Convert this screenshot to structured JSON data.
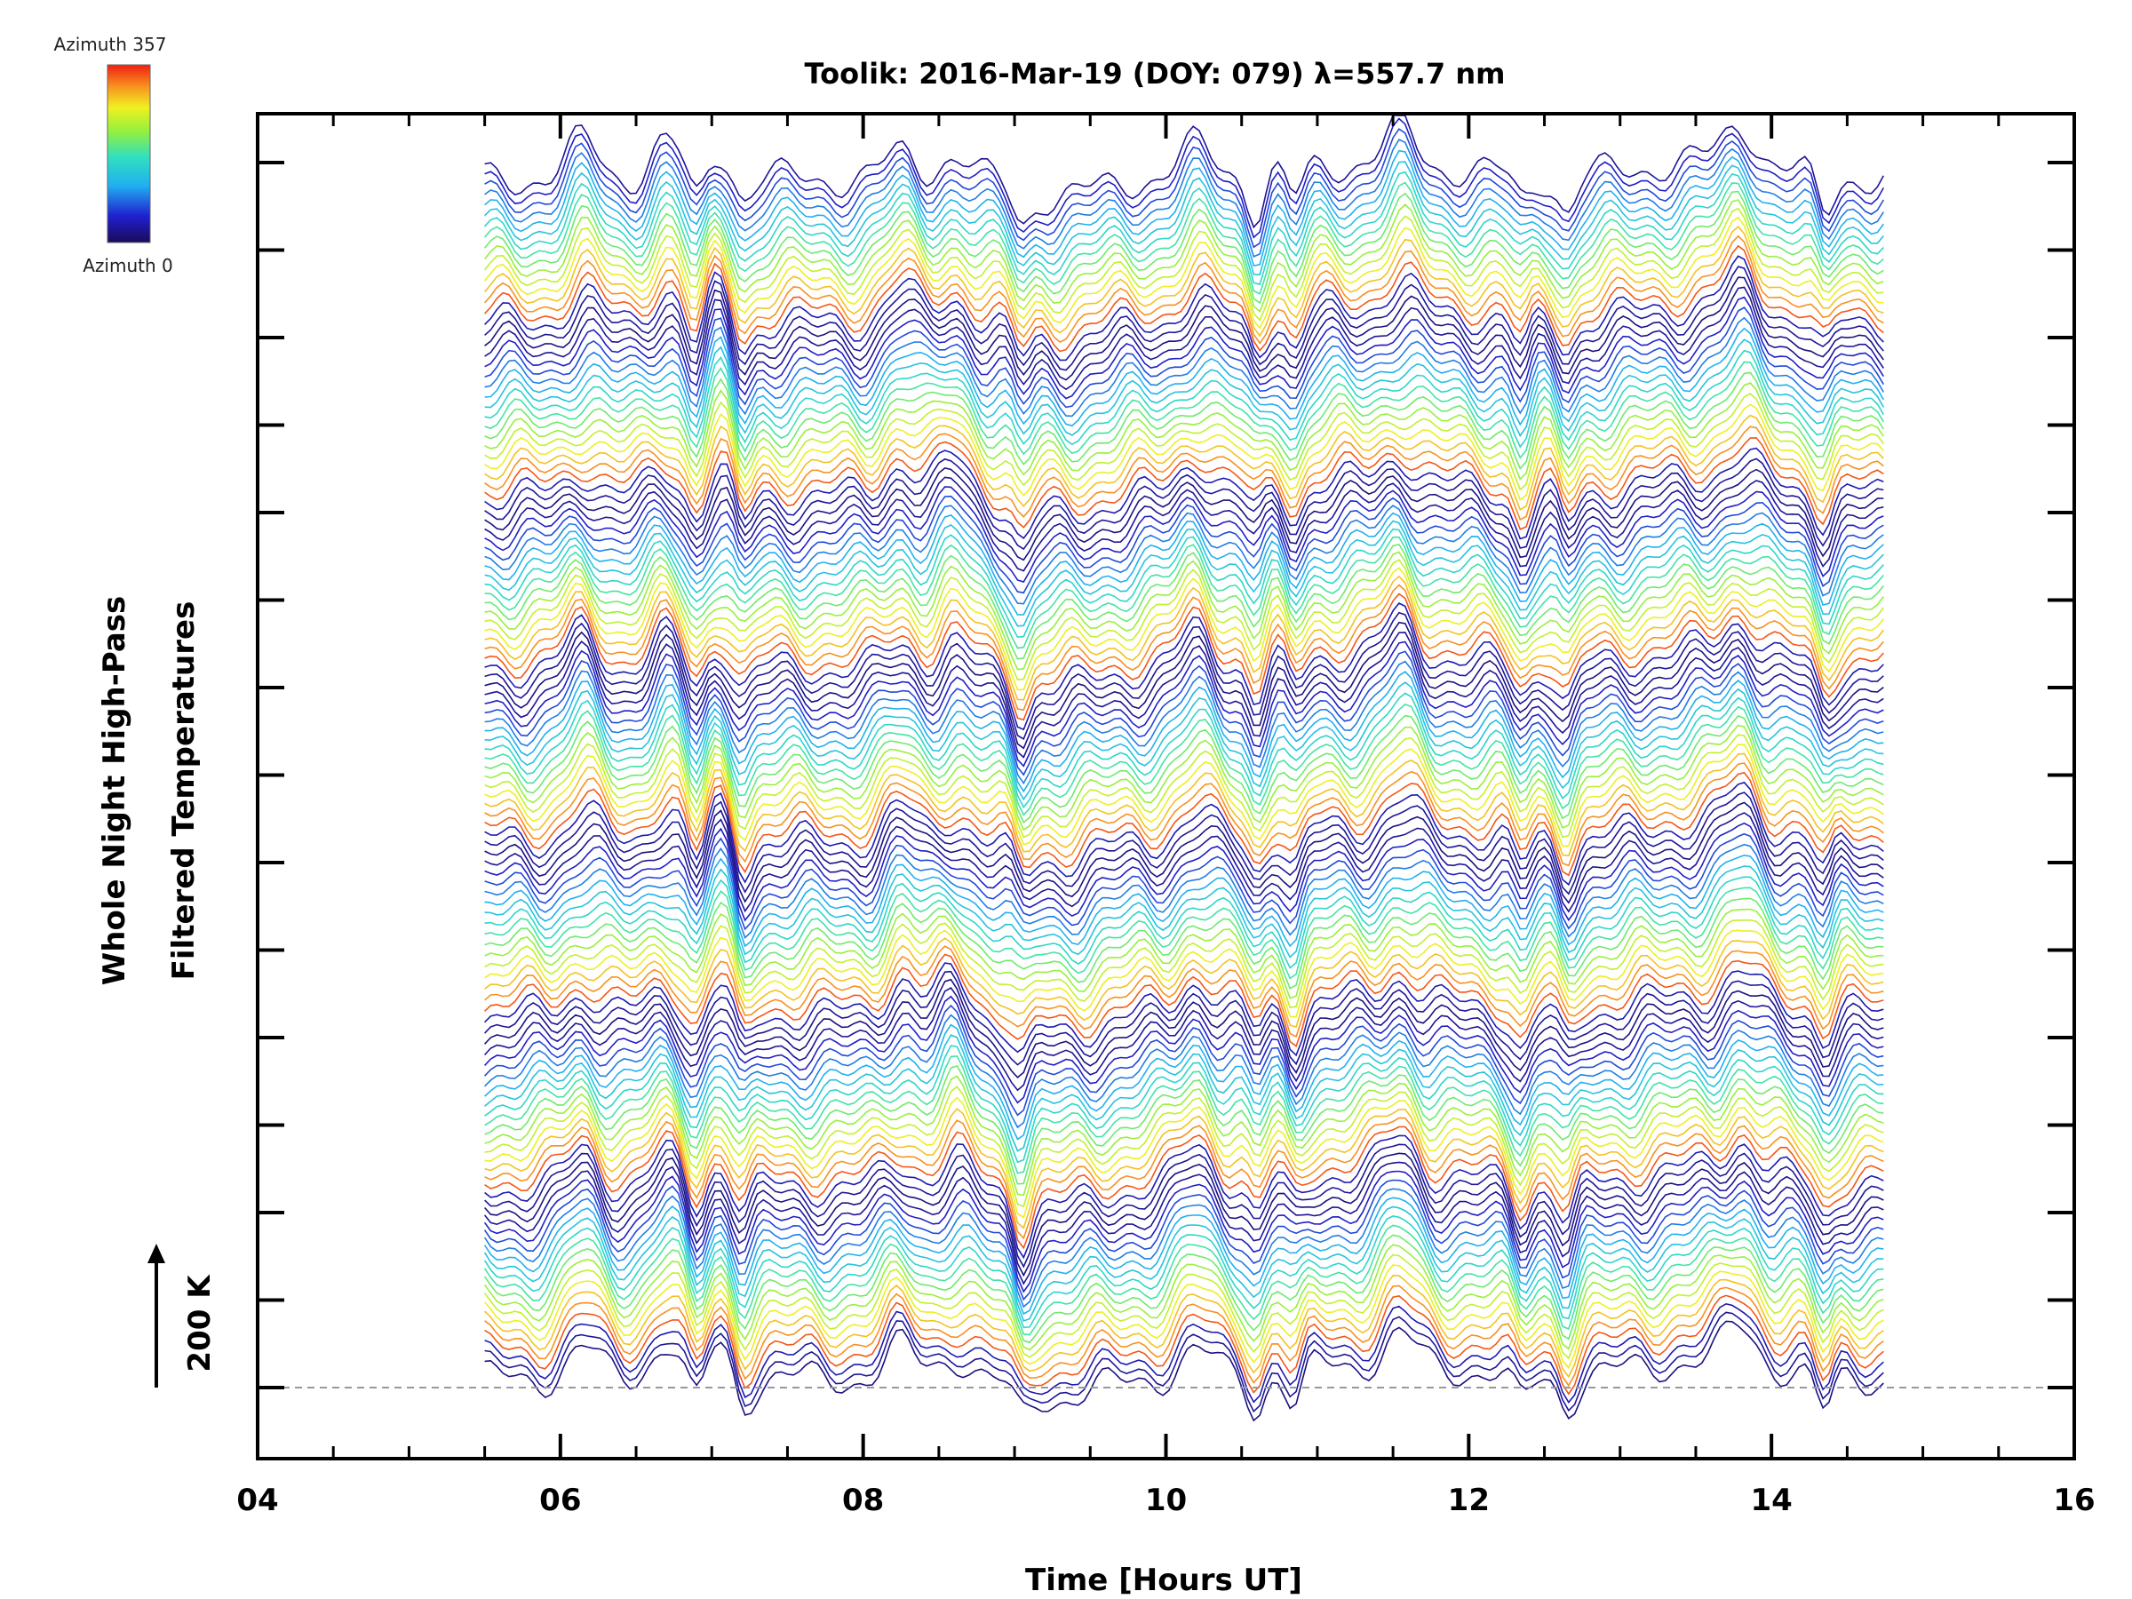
{
  "chart_data": {
    "type": "line",
    "title": "Toolik: 2016-Mar-19 (DOY: 079) λ=557.7 nm",
    "xlabel": "Time [Hours UT]",
    "ylabel_line1": "Whole Night High-Pass",
    "ylabel_line2": "Filtered Temperatures",
    "xlim": [
      4,
      16
    ],
    "x_ticks": [
      4,
      6,
      8,
      10,
      12,
      14,
      16
    ],
    "x_tick_labels": [
      "04",
      "06",
      "08",
      "10",
      "12",
      "14",
      "16"
    ],
    "data_time_range": [
      5.5,
      14.75
    ],
    "scale_bar": {
      "label": "200 K",
      "value_K": 200
    },
    "colorbar": {
      "label_top": "Azimuth 357",
      "label_bottom": "Azimuth 0",
      "colormap": "rainbow",
      "azimuth_range": [
        0,
        357
      ]
    },
    "stack": {
      "groups": 7,
      "traces_per_group": 18,
      "offset_unit": "traces stacked with vertical offsets; scale bar indicates 200 K",
      "baseline_dashed": true
    },
    "features": {
      "peaks_hours": [
        6.15,
        6.7,
        7.05,
        8.25,
        8.6,
        10.2,
        11.55,
        13.8
      ],
      "dips_hours": [
        6.9,
        7.2,
        9.05,
        10.6,
        10.85,
        12.35,
        12.65,
        14.35
      ]
    }
  },
  "colors": {
    "background": "#ffffff",
    "axis": "#000000",
    "baseline": "#999999"
  }
}
